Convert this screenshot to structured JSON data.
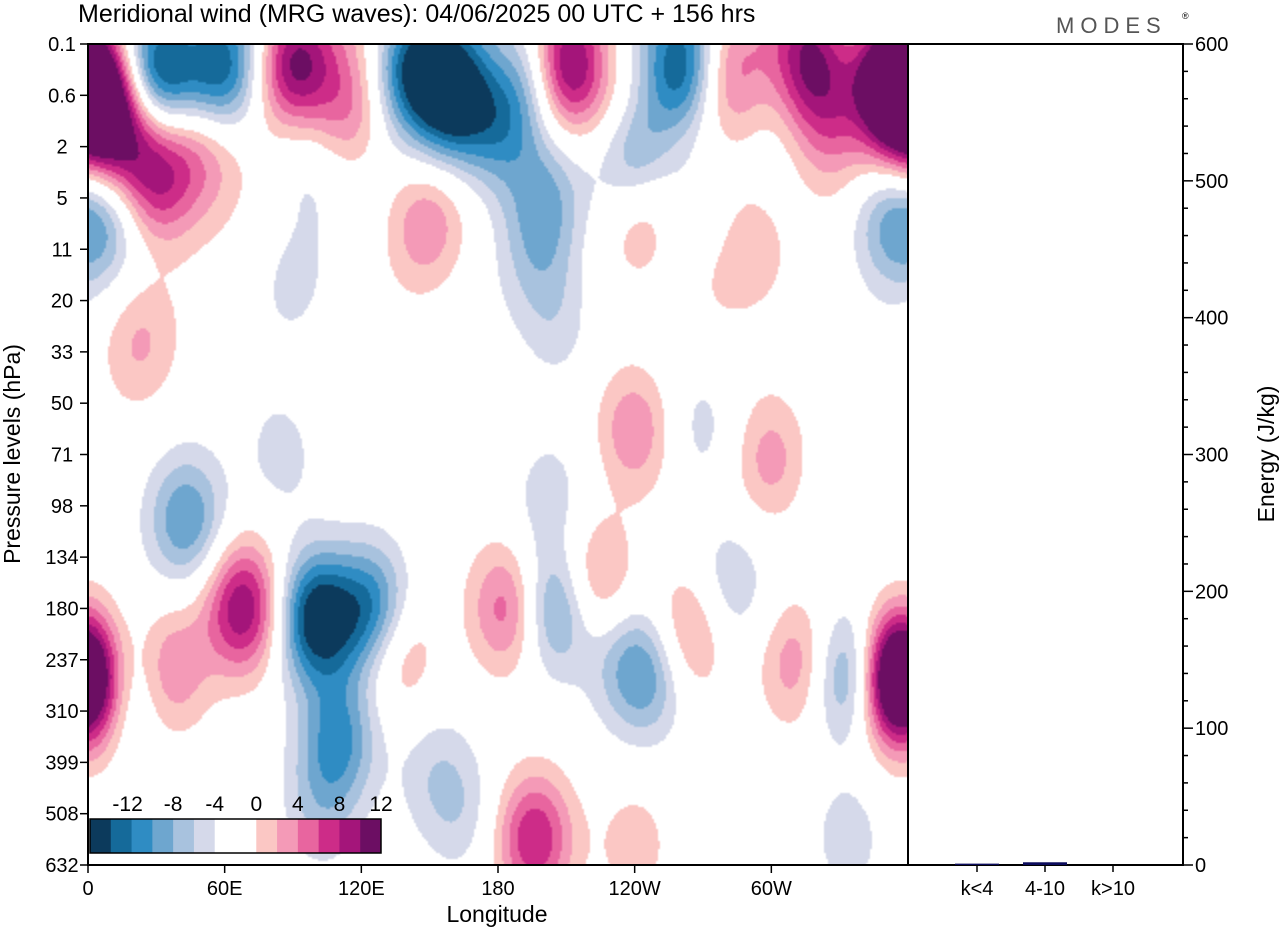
{
  "title": "Meridional wind (MRG waves):  04/06/2025  00 UTC  + 156 hrs",
  "logo": "MODES",
  "chart_data": [
    {
      "type": "heatmap",
      "title": "Meridional wind (MRG waves):  04/06/2025  00 UTC  + 156 hrs",
      "xlabel": "Longitude",
      "ylabel": "Pressure levels (hPa)",
      "x_ticks": [
        "0",
        "60E",
        "120E",
        "180",
        "120W",
        "60W"
      ],
      "x_tick_degrees": [
        0,
        60,
        120,
        180,
        240,
        300
      ],
      "xlim": [
        0,
        360
      ],
      "y_ticks": [
        "0.1",
        "0.6",
        "2",
        "5",
        "11",
        "20",
        "33",
        "50",
        "71",
        "98",
        "134",
        "180",
        "237",
        "310",
        "399",
        "508",
        "632"
      ],
      "y_scale": "level index (top 0.1 hPa to bottom 632 hPa)",
      "colorbar": {
        "labels": [
          "-12",
          "-8",
          "-4",
          "0",
          "4",
          "8",
          "12"
        ],
        "colors": [
          "#0c3a5c",
          "#156a9a",
          "#2f8cc3",
          "#6ea6cf",
          "#a8c2de",
          "#d5d9ea",
          "#ffffff",
          "#ffffff",
          "#fbc7c4",
          "#f49ab7",
          "#e8659f",
          "#cd2c88",
          "#a4157a",
          "#6c0e63"
        ]
      },
      "blobs": [
        {
          "lon": 0,
          "lev": 1,
          "v": 12
        },
        {
          "lon": 8,
          "lev": 1.3,
          "v": 6
        },
        {
          "lon": 30,
          "lev": 0.4,
          "v": -14
        },
        {
          "lon": 58,
          "lev": 0.5,
          "v": -10
        },
        {
          "lon": 90,
          "lev": 0.3,
          "v": 12
        },
        {
          "lon": 115,
          "lev": 1.3,
          "v": 6
        },
        {
          "lon": 142,
          "lev": 0.4,
          "v": -10
        },
        {
          "lon": 160,
          "lev": 1,
          "v": -14
        },
        {
          "lon": 180,
          "lev": 1.6,
          "v": -8
        },
        {
          "lon": 196,
          "lev": 0.6,
          "v": -8
        },
        {
          "lon": 210,
          "lev": 0.5,
          "v": 14
        },
        {
          "lon": 235,
          "lev": 1.4,
          "v": 6
        },
        {
          "lon": 262,
          "lev": 0.5,
          "v": -12
        },
        {
          "lon": 240,
          "lev": 2,
          "v": -10
        },
        {
          "lon": 280,
          "lev": 0.6,
          "v": 6
        },
        {
          "lon": 318,
          "lev": 0.3,
          "v": 12
        },
        {
          "lon": 352,
          "lev": 0.6,
          "v": 14
        },
        {
          "lon": 325,
          "lev": 1.6,
          "v": 6
        },
        {
          "lon": 15,
          "lev": 1.8,
          "v": 6
        },
        {
          "lon": 30,
          "lev": 2.6,
          "v": 10
        },
        {
          "lon": 50,
          "lev": 2,
          "v": 6
        },
        {
          "lon": 6,
          "lev": 3.4,
          "v": -6
        },
        {
          "lon": 95,
          "lev": 2.2,
          "v": -3
        },
        {
          "lon": 148,
          "lev": 3.5,
          "v": 5
        },
        {
          "lon": 200,
          "lev": 3,
          "v": -5
        },
        {
          "lon": 198,
          "lev": 4.2,
          "v": -3
        },
        {
          "lon": 206,
          "lev": 5.5,
          "v": -3
        },
        {
          "lon": 245,
          "lev": 3.3,
          "v": 4
        },
        {
          "lon": 268,
          "lev": 3.6,
          "v": -5
        },
        {
          "lon": 290,
          "lev": 3.8,
          "v": 4
        },
        {
          "lon": 272,
          "lev": 4.3,
          "v": 4
        },
        {
          "lon": 350,
          "lev": 3.5,
          "v": -5
        },
        {
          "lon": 22,
          "lev": 5.8,
          "v": 4
        },
        {
          "lon": 90,
          "lev": 4.7,
          "v": -2
        },
        {
          "lon": 43,
          "lev": 9.3,
          "v": -8
        },
        {
          "lon": 68,
          "lev": 11,
          "v": 12
        },
        {
          "lon": 85,
          "lev": 8,
          "v": -3
        },
        {
          "lon": 100,
          "lev": 11.2,
          "v": -14
        },
        {
          "lon": 125,
          "lev": 11.1,
          "v": -11
        },
        {
          "lon": 110,
          "lev": 13.5,
          "v": -8
        },
        {
          "lon": 102,
          "lev": 14.8,
          "v": -4
        },
        {
          "lon": 0,
          "lev": 12.5,
          "v": 11
        },
        {
          "lon": 14,
          "lev": 12.5,
          "v": -6
        },
        {
          "lon": 36,
          "lev": 12.2,
          "v": 6
        },
        {
          "lon": 135,
          "lev": 11.8,
          "v": 6
        },
        {
          "lon": 152,
          "lev": 14.2,
          "v": -3
        },
        {
          "lon": 185,
          "lev": 11,
          "v": 8
        },
        {
          "lon": 205,
          "lev": 11,
          "v": -9
        },
        {
          "lon": 202,
          "lev": 8.8,
          "v": -3
        },
        {
          "lon": 222,
          "lev": 10.5,
          "v": 6
        },
        {
          "lon": 233,
          "lev": 12,
          "v": -3
        },
        {
          "lon": 264,
          "lev": 11.5,
          "v": 6
        },
        {
          "lon": 246,
          "lev": 12.3,
          "v": -7
        },
        {
          "lon": 240,
          "lev": 7.5,
          "v": 6
        },
        {
          "lon": 270,
          "lev": 7.5,
          "v": -3
        },
        {
          "lon": 300,
          "lev": 8.1,
          "v": 5
        },
        {
          "lon": 282,
          "lev": 10.6,
          "v": -4
        },
        {
          "lon": 313,
          "lev": 12.1,
          "v": 6
        },
        {
          "lon": 334,
          "lev": 12.3,
          "v": -9
        },
        {
          "lon": 356,
          "lev": 12.3,
          "v": 14
        },
        {
          "lon": 335,
          "lev": 9,
          "v": -2
        },
        {
          "lon": 196,
          "lev": 15.5,
          "v": 10
        },
        {
          "lon": 164,
          "lev": 15,
          "v": -3
        },
        {
          "lon": 240,
          "lev": 15.6,
          "v": 3
        },
        {
          "lon": 334,
          "lev": 15.5,
          "v": -3
        }
      ]
    },
    {
      "type": "bar",
      "categories": [
        "k<4",
        "4-10",
        "k>10"
      ],
      "values": [
        1,
        2,
        0
      ],
      "ylabel": "Energy (J/kg)",
      "ylim": [
        0,
        600
      ],
      "y_ticks": [
        "0",
        "100",
        "200",
        "300",
        "400",
        "500",
        "600"
      ]
    }
  ]
}
